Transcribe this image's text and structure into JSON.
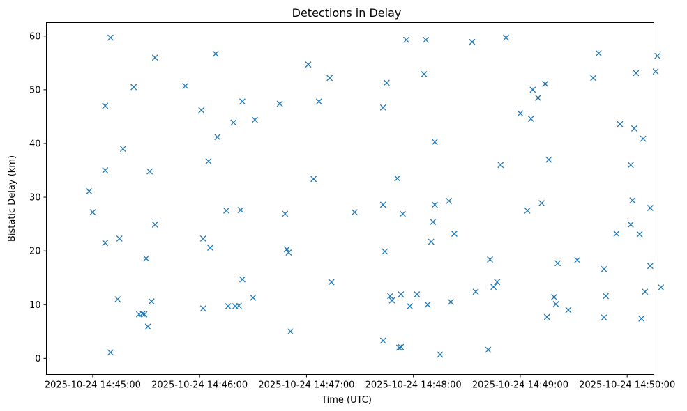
{
  "chart_data": {
    "type": "scatter",
    "title": "Detections in Delay",
    "xlabel": "Time (UTC)",
    "ylabel": "Bistatic Delay (km)",
    "marker": "x",
    "color": "#1f77b4",
    "x_unit": "seconds after 2025-10-24 14:45:00",
    "xlim": [
      -26,
      315
    ],
    "ylim": [
      -3,
      62.5
    ],
    "x_ticks": [
      {
        "value": 0,
        "label": "2025-10-24 14:45:00"
      },
      {
        "value": 60,
        "label": "2025-10-24 14:46:00"
      },
      {
        "value": 120,
        "label": "2025-10-24 14:47:00"
      },
      {
        "value": 180,
        "label": "2025-10-24 14:48:00"
      },
      {
        "value": 240,
        "label": "2025-10-24 14:49:00"
      },
      {
        "value": 300,
        "label": "2025-10-24 14:50:00"
      }
    ],
    "y_ticks": [
      {
        "value": 0,
        "label": "0"
      },
      {
        "value": 10,
        "label": "10"
      },
      {
        "value": 20,
        "label": "20"
      },
      {
        "value": 30,
        "label": "30"
      },
      {
        "value": 40,
        "label": "40"
      },
      {
        "value": 50,
        "label": "50"
      },
      {
        "value": 60,
        "label": "60"
      }
    ],
    "points": [
      [
        -2,
        31.1
      ],
      [
        0,
        27.2
      ],
      [
        7,
        35.0
      ],
      [
        7,
        47.0
      ],
      [
        7,
        21.5
      ],
      [
        10,
        59.7
      ],
      [
        10,
        1.1
      ],
      [
        14,
        11.0
      ],
      [
        15,
        22.3
      ],
      [
        17,
        39.0
      ],
      [
        23,
        50.5
      ],
      [
        26,
        8.2
      ],
      [
        28,
        8.3
      ],
      [
        29,
        8.2
      ],
      [
        30,
        18.6
      ],
      [
        31,
        5.9
      ],
      [
        32,
        34.8
      ],
      [
        33,
        10.6
      ],
      [
        35,
        56.0
      ],
      [
        35,
        24.9
      ],
      [
        52,
        50.7
      ],
      [
        61,
        46.2
      ],
      [
        62,
        22.3
      ],
      [
        62,
        9.3
      ],
      [
        65,
        36.7
      ],
      [
        66,
        20.6
      ],
      [
        69,
        56.7
      ],
      [
        70,
        41.2
      ],
      [
        75,
        27.5
      ],
      [
        76,
        9.7
      ],
      [
        79,
        43.9
      ],
      [
        80,
        9.7
      ],
      [
        82,
        9.8
      ],
      [
        83,
        27.6
      ],
      [
        84,
        14.7
      ],
      [
        84,
        47.8
      ],
      [
        90,
        11.3
      ],
      [
        91,
        44.4
      ],
      [
        105,
        47.4
      ],
      [
        108,
        26.9
      ],
      [
        109,
        20.3
      ],
      [
        110,
        19.7
      ],
      [
        111,
        5.0
      ],
      [
        121,
        54.7
      ],
      [
        124,
        33.4
      ],
      [
        127,
        47.8
      ],
      [
        133,
        52.2
      ],
      [
        134,
        14.2
      ],
      [
        147,
        27.2
      ],
      [
        163,
        3.3
      ],
      [
        163,
        28.6
      ],
      [
        163,
        46.7
      ],
      [
        164,
        19.9
      ],
      [
        165,
        51.3
      ],
      [
        167,
        11.6
      ],
      [
        168,
        10.8
      ],
      [
        171,
        33.5
      ],
      [
        172,
        2.0
      ],
      [
        173,
        11.9
      ],
      [
        173,
        2.1
      ],
      [
        174,
        26.9
      ],
      [
        176,
        59.3
      ],
      [
        178,
        9.7
      ],
      [
        182,
        11.9
      ],
      [
        186,
        52.9
      ],
      [
        187,
        59.3
      ],
      [
        188,
        10.0
      ],
      [
        190,
        21.7
      ],
      [
        191,
        25.4
      ],
      [
        192,
        40.3
      ],
      [
        192,
        28.6
      ],
      [
        195,
        0.7
      ],
      [
        200,
        29.3
      ],
      [
        201,
        10.5
      ],
      [
        203,
        23.2
      ],
      [
        215,
        12.4
      ],
      [
        213,
        58.9
      ],
      [
        222,
        1.6
      ],
      [
        223,
        18.4
      ],
      [
        225,
        13.3
      ],
      [
        227,
        14.2
      ],
      [
        229,
        36.0
      ],
      [
        232,
        59.7
      ],
      [
        240,
        45.6
      ],
      [
        244,
        27.5
      ],
      [
        246,
        44.6
      ],
      [
        247,
        50.0
      ],
      [
        250,
        48.5
      ],
      [
        252,
        28.9
      ],
      [
        254,
        51.1
      ],
      [
        255,
        7.7
      ],
      [
        256,
        37.0
      ],
      [
        259,
        11.4
      ],
      [
        260,
        10.1
      ],
      [
        261,
        17.7
      ],
      [
        267,
        9.0
      ],
      [
        272,
        18.3
      ],
      [
        281,
        52.2
      ],
      [
        284,
        56.8
      ],
      [
        287,
        16.6
      ],
      [
        287,
        7.6
      ],
      [
        288,
        11.6
      ],
      [
        294,
        23.2
      ],
      [
        296,
        43.6
      ],
      [
        302,
        36.0
      ],
      [
        302,
        24.9
      ],
      [
        303,
        29.4
      ],
      [
        304,
        42.8
      ],
      [
        305,
        53.1
      ],
      [
        307,
        23.1
      ],
      [
        308,
        7.4
      ],
      [
        309,
        40.9
      ],
      [
        310,
        12.4
      ],
      [
        313,
        28.0
      ],
      [
        313,
        17.2
      ],
      [
        316,
        53.4
      ],
      [
        317,
        56.3
      ],
      [
        319,
        13.2
      ]
    ]
  }
}
